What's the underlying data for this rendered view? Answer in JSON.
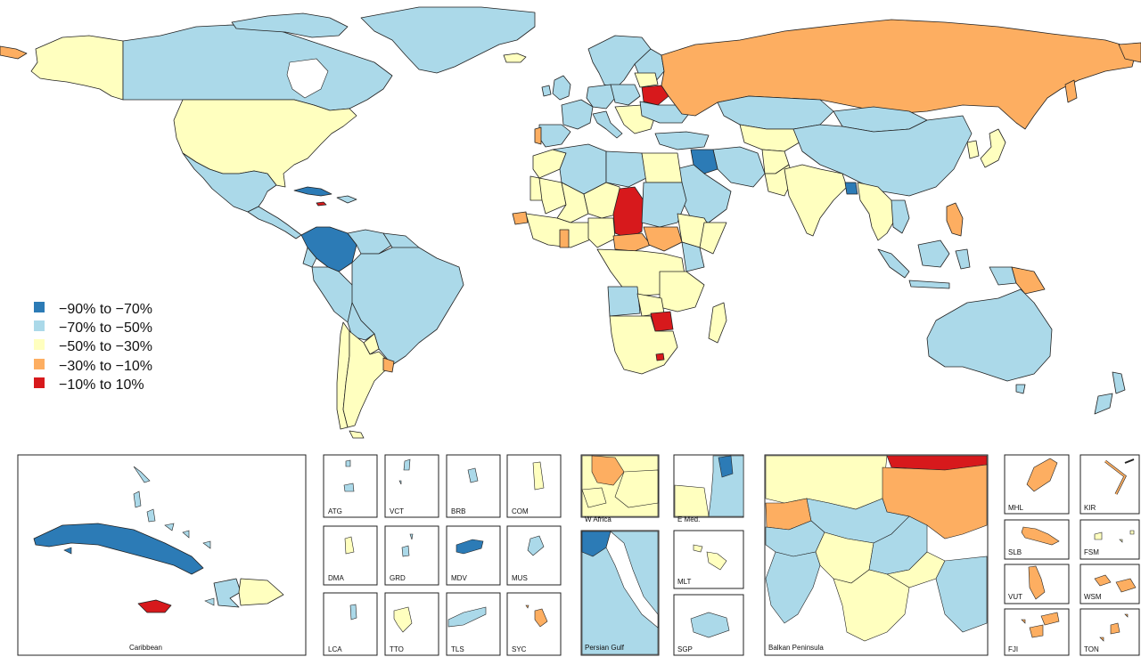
{
  "colors": {
    "c1": "#2c7bb6",
    "c2": "#abd9e9",
    "c3": "#ffffbf",
    "c4": "#fdae61",
    "c5": "#d7191c"
  },
  "legend": [
    {
      "label": "−90% to −70%",
      "color": "#2c7bb6"
    },
    {
      "label": "−70% to −50%",
      "color": "#abd9e9"
    },
    {
      "label": "−50% to −30%",
      "color": "#ffffbf"
    },
    {
      "label": "−30% to −10%",
      "color": "#fdae61"
    },
    {
      "label": "−10% to 10%",
      "color": "#d7191c"
    }
  ],
  "insets": {
    "caribbean": "Caribbean",
    "atg": "ATG",
    "vct": "VCT",
    "brb": "BRB",
    "com": "COM",
    "dma": "DMA",
    "grd": "GRD",
    "mdv": "MDV",
    "mus": "MUS",
    "lca": "LCA",
    "tto": "TTO",
    "tls": "TLS",
    "syc": "SYC",
    "wafrica": "W Africa",
    "emed": "E Med.",
    "gulf": "Persian Gulf",
    "mlt": "MLT",
    "sgp": "SGP",
    "balkan": "Balkan Peninsula",
    "mhl": "MHL",
    "kir": "KIR",
    "slb": "SLB",
    "fsm": "FSM",
    "vut": "VUT",
    "wsm": "WSM",
    "fji": "FJI",
    "ton": "TON"
  }
}
